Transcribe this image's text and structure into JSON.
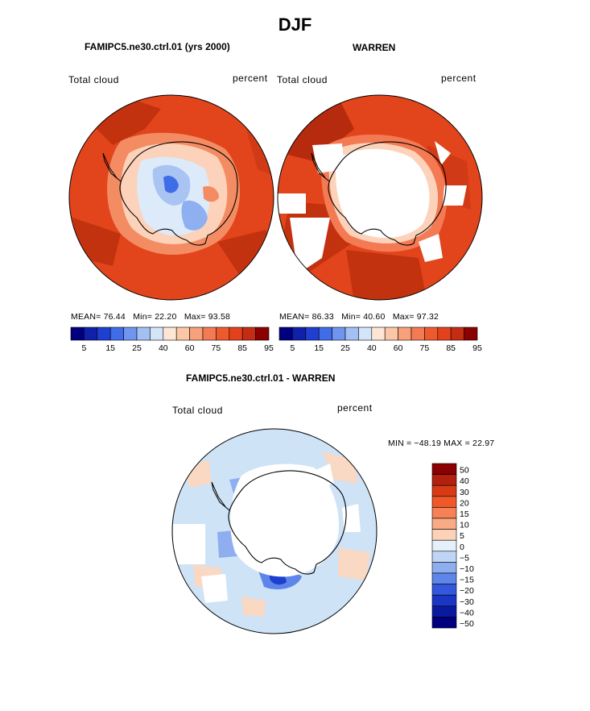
{
  "page": {
    "season_title": "DJF",
    "colors": {
      "deep_red": "#8B0000",
      "red": "#D53E1F",
      "orange_red": "#E8531F",
      "light_blue": "#CFE3F7",
      "blue": "#3F6DE8",
      "navy": "#00007F"
    }
  },
  "panels": [
    {
      "id": "model",
      "title": "FAMIPC5.ne30.ctrl.01 (yrs 2000)",
      "variable": "Total cloud",
      "units": "percent",
      "stats": {
        "mean_label": "MEAN=",
        "mean": "76.44",
        "min_label": "Min=",
        "min": "22.20",
        "max_label": "Max=",
        "max": "93.58"
      }
    },
    {
      "id": "obs",
      "title": "WARREN",
      "variable": "Total cloud",
      "units": "percent",
      "stats": {
        "mean_label": "MEAN=",
        "mean": "86.33",
        "min_label": "Min=",
        "min": "40.60",
        "max_label": "Max=",
        "max": "97.32"
      }
    }
  ],
  "difference": {
    "title": "FAMIPC5.ne30.ctrl.01 - WARREN",
    "variable": "Total cloud",
    "units": "percent",
    "minmax": "MIN = −48.19 MAX =  22.97"
  },
  "colorbar_abs": {
    "colors": [
      "#00007F",
      "#1020A8",
      "#1F3FD0",
      "#3F6DE8",
      "#6F95EE",
      "#A3BFF3",
      "#D4E5FA",
      "#FDE6D4",
      "#FBC7A6",
      "#F7A07A",
      "#F37A53",
      "#EE5A2E",
      "#E3401C",
      "#C42D14",
      "#8B0000"
    ],
    "tick_labels": [
      "5",
      "15",
      "25",
      "40",
      "60",
      "75",
      "85",
      "95"
    ]
  },
  "colorbar_diff": {
    "colors": [
      "#8B0000",
      "#B3200E",
      "#D83A15",
      "#F0582A",
      "#F58155",
      "#F9AB86",
      "#FCD3B9",
      "#E6F0FB",
      "#BFD5F5",
      "#8EAEF0",
      "#5E86EA",
      "#3358DD",
      "#1B36C4",
      "#0A1A9E",
      "#00007F"
    ],
    "tick_labels": [
      "50",
      "40",
      "30",
      "20",
      "15",
      "10",
      "5",
      "0",
      "−5",
      "−10",
      "−15",
      "−20",
      "−30",
      "−40",
      "−50"
    ]
  },
  "chart_data": {
    "type": "heatmap",
    "title": "DJF",
    "variable": "Total cloud (percent)",
    "projection": "south polar stereographic",
    "panels": [
      {
        "name": "FAMIPC5.ne30.ctrl.01 (yrs 2000)",
        "mean": 76.44,
        "min": 22.2,
        "max": 93.58
      },
      {
        "name": "WARREN",
        "mean": 86.33,
        "min": 40.6,
        "max": 97.32
      },
      {
        "name": "FAMIPC5.ne30.ctrl.01 - WARREN",
        "min": -48.19,
        "max": 22.97
      }
    ],
    "colorbar_abs_levels": [
      5,
      15,
      25,
      40,
      60,
      75,
      85,
      95
    ],
    "colorbar_diff_levels": [
      50,
      40,
      30,
      20,
      15,
      10,
      5,
      0,
      -5,
      -10,
      -15,
      -20,
      -30,
      -40,
      -50
    ]
  }
}
